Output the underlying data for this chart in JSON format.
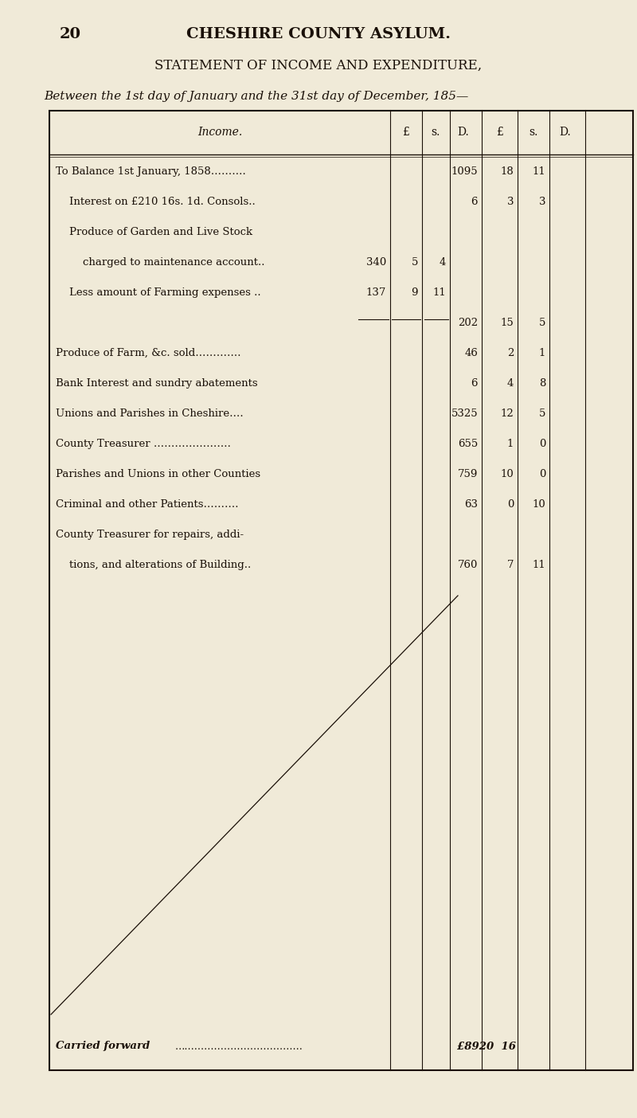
{
  "page_number": "20",
  "header_title": "CHESHIRE COUNTY ASYLUM.",
  "statement_title": "STATEMENT OF INCOME AND EXPENDITURE,",
  "subtitle": "Between the 1st day of January and the 31st day of December, 185—",
  "bg_color": "#f0ead8",
  "text_color": "#1a1008",
  "col_headers": [
    "Income.",
    "£",
    "s.",
    "D.",
    "£",
    "s.",
    "D."
  ],
  "rows": [
    {
      "label": "To Balance 1st January, 1858……….",
      "sub1_£": "",
      "sub1_s": "",
      "sub1_d": "",
      "£": "1095",
      "s": "18",
      "d": "11"
    },
    {
      "label": "    Interest on £210 16s. 1d. Consols..",
      "sub1_£": "",
      "sub1_s": "",
      "sub1_d": "",
      "£": "6",
      "s": "3",
      "d": "3"
    },
    {
      "label": "    Produce of Garden and Live Stock",
      "sub1_£": "",
      "sub1_s": "",
      "sub1_d": "",
      "£": "",
      "s": "",
      "d": ""
    },
    {
      "label": "        charged to maintenance account..",
      "sub1_£": "340",
      "sub1_s": "5",
      "sub1_d": "4",
      "£": "",
      "s": "",
      "d": ""
    },
    {
      "label": "    Less amount of Farming expenses ..",
      "sub1_£": "137",
      "sub1_s": "9",
      "sub1_d": "11",
      "£": "",
      "s": "",
      "d": ""
    },
    {
      "label": "",
      "sub1_£": "",
      "sub1_s": "",
      "sub1_d": "",
      "£": "202",
      "s": "15",
      "d": "5",
      "underline_sub": true
    },
    {
      "label": "Produce of Farm, &c. sold………….",
      "sub1_£": "",
      "sub1_s": "",
      "sub1_d": "",
      "£": "46",
      "s": "2",
      "d": "1"
    },
    {
      "label": "Bank Interest and sundry abatements",
      "sub1_£": "",
      "sub1_s": "",
      "sub1_d": "",
      "£": "6",
      "s": "4",
      "d": "8"
    },
    {
      "label": "Unions and Parishes in Cheshire….",
      "sub1_£": "",
      "sub1_s": "",
      "sub1_d": "",
      "£": "5325",
      "s": "12",
      "d": "5"
    },
    {
      "label": "County Treasurer ………………….",
      "sub1_£": "",
      "sub1_s": "",
      "sub1_d": "",
      "£": "655",
      "s": "1",
      "d": "0"
    },
    {
      "label": "Parishes and Unions in other Counties",
      "sub1_£": "",
      "sub1_s": "",
      "sub1_d": "",
      "£": "759",
      "s": "10",
      "d": "0"
    },
    {
      "label": "Criminal and other Patients……….",
      "sub1_£": "",
      "sub1_s": "",
      "sub1_d": "",
      "£": "63",
      "s": "0",
      "d": "10"
    },
    {
      "label": "County Treasurer for repairs, addi-",
      "sub1_£": "",
      "sub1_s": "",
      "sub1_d": "",
      "£": "",
      "s": "",
      "d": ""
    },
    {
      "label": "    tions, and alterations of Building..",
      "sub1_£": "",
      "sub1_s": "",
      "sub1_d": "",
      "£": "760",
      "s": "7",
      "d": "11"
    }
  ],
  "footer_label": "Carried forward",
  "footer_dots": "…………………………………",
  "footer_value": "£8920  16"
}
